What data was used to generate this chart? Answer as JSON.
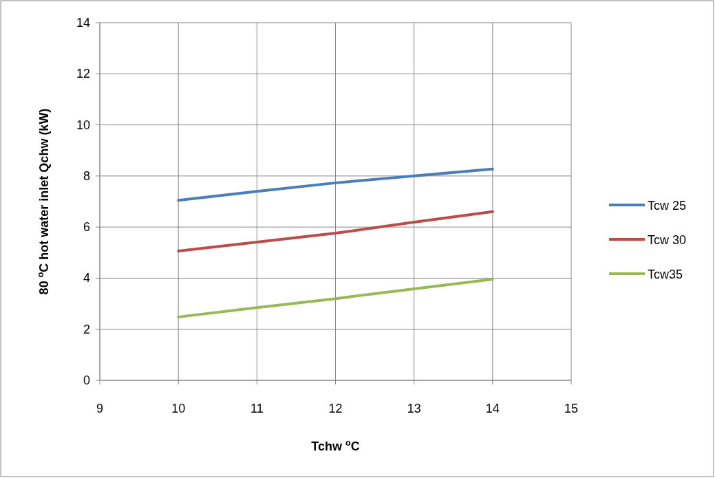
{
  "chart_data": {
    "type": "line",
    "xlabel": "Tchw $^{o}$C",
    "ylabel": "80 $^{o}$C hot water inlet Qchw (kW)",
    "x": [
      10,
      11,
      12,
      13,
      14
    ],
    "series": [
      {
        "name": "Tcw 25",
        "color": "#4a7ebb",
        "values": [
          7.05,
          7.4,
          7.73,
          8.0,
          8.27
        ]
      },
      {
        "name": "Tcw 30",
        "color": "#be4b48",
        "values": [
          5.06,
          5.41,
          5.76,
          6.19,
          6.6
        ]
      },
      {
        "name": "Tcw35",
        "color": "#98b954",
        "values": [
          2.48,
          2.85,
          3.2,
          3.58,
          3.96
        ]
      }
    ],
    "xlim": [
      9,
      15
    ],
    "xticks": [
      9,
      10,
      11,
      12,
      13,
      14,
      15
    ],
    "ylim": [
      0,
      14
    ],
    "yticks": [
      0,
      2,
      4,
      6,
      8,
      10,
      12,
      14
    ],
    "grid": true,
    "legend": "right",
    "marker": "none",
    "line_style": "solid"
  }
}
